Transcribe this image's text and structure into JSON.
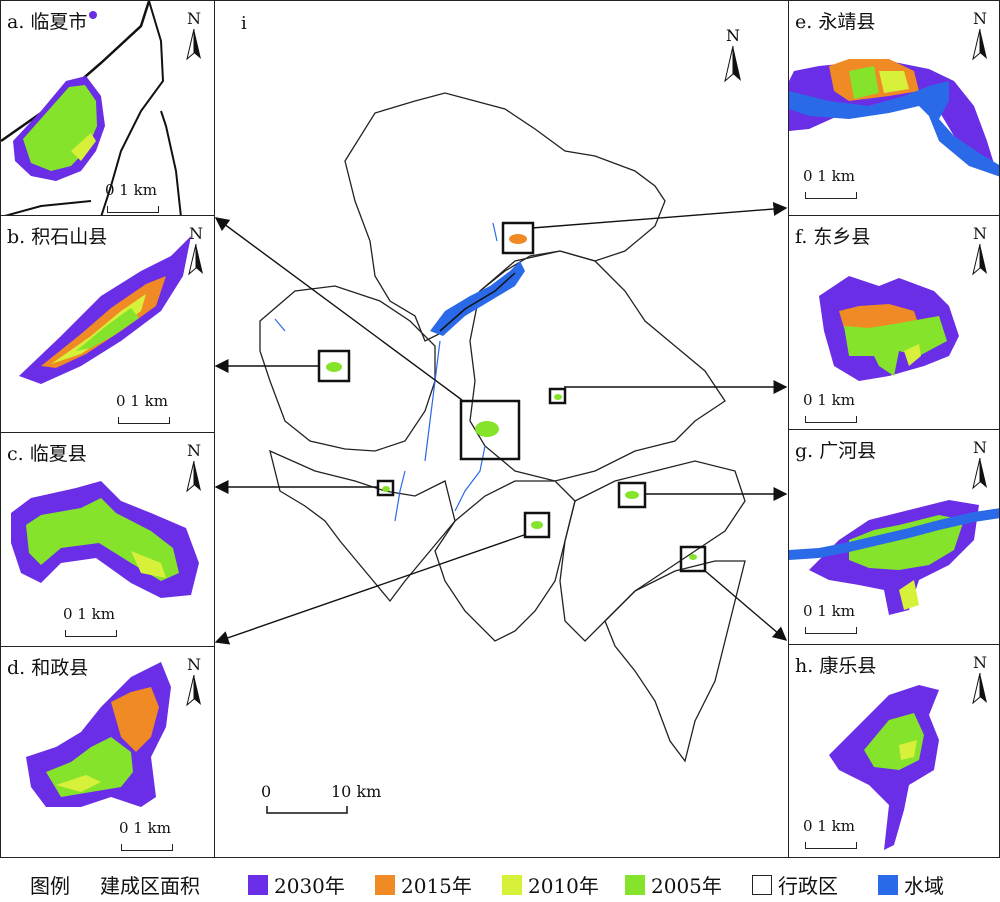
{
  "colors": {
    "c2030": "#6a2ee6",
    "c2015": "#f08a24",
    "c2010": "#d7f03a",
    "c2005": "#86e32c",
    "water": "#2a6ae8",
    "boundary": "#222222"
  },
  "panels": {
    "a": {
      "label": "a. 临夏市",
      "scale": "0 1 km",
      "north": "N"
    },
    "b": {
      "label": "b. 积石山县",
      "scale": "0 1 km",
      "north": "N"
    },
    "c": {
      "label": "c. 临夏县",
      "scale": "0 1 km",
      "north": "N"
    },
    "d": {
      "label": "d. 和政县",
      "scale": "0 1 km",
      "north": "N"
    },
    "e": {
      "label": "e. 永靖县",
      "scale": "0 1 km",
      "north": "N"
    },
    "f": {
      "label": "f. 东乡县",
      "scale": "0 1 km",
      "north": "N"
    },
    "g": {
      "label": "g. 广河县",
      "scale": "0 1 km",
      "north": "N"
    },
    "h": {
      "label": "h. 康乐县",
      "scale": "0 1 km",
      "north": "N"
    },
    "i": {
      "label": "i",
      "scale0": "0",
      "scale1": "10 km",
      "north": "N"
    }
  },
  "legend": {
    "title": "图例",
    "subtitle": "建成区面积",
    "items": [
      {
        "label": "2030年",
        "color": "#6a2ee6"
      },
      {
        "label": "2015年",
        "color": "#f08a24"
      },
      {
        "label": "2010年",
        "color": "#d7f03a"
      },
      {
        "label": "2005年",
        "color": "#86e32c"
      },
      {
        "label": "行政区",
        "color": "none"
      },
      {
        "label": "水域",
        "color": "#2a6ae8"
      }
    ]
  }
}
